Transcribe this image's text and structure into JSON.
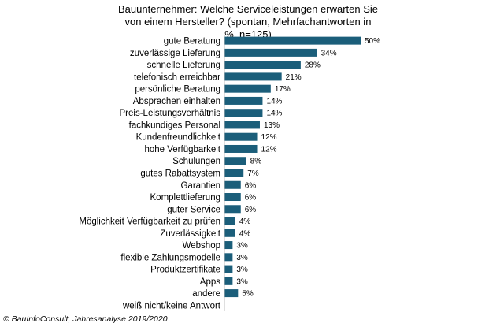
{
  "chart_data": {
    "type": "bar",
    "orientation": "horizontal",
    "title": "Bauunternehmer:  Welche Serviceleistungen erwarten Sie von einem Hersteller? (spontan, Mehrfachantworten  in %, n=125)",
    "categories": [
      "gute Beratung",
      "zuverlässige Lieferung",
      "schnelle Lieferung",
      "telefonisch erreichbar",
      "persönliche Beratung",
      "Absprachen einhalten",
      "Preis-Leistungsverhältnis",
      "fachkundiges Personal",
      "Kundenfreundlichkeit",
      "hohe Verfügbarkeit",
      "Schulungen",
      "gutes Rabattsystem",
      "Garantien",
      "Komplettlieferung",
      "guter Service",
      "Möglichkeit Verfügbarkeit zu prüfen",
      "Zuverlässigkeit",
      "Webshop",
      "flexible Zahlungsmodelle",
      "Produktzertifikate",
      "Apps",
      "andere",
      "weiß nicht/keine Antwort"
    ],
    "values": [
      50,
      34,
      28,
      21,
      17,
      14,
      14,
      13,
      12,
      12,
      8,
      7,
      6,
      6,
      6,
      4,
      4,
      3,
      3,
      3,
      3,
      5,
      null
    ],
    "value_labels": [
      "50%",
      "34%",
      "28%",
      "21%",
      "17%",
      "14%",
      "14%",
      "13%",
      "12%",
      "12%",
      "8%",
      "7%",
      "6%",
      "6%",
      "6%",
      "4%",
      "4%",
      "3%",
      "3%",
      "3%",
      "3%",
      "5%",
      ""
    ],
    "xlim": [
      0,
      50
    ],
    "bar_color": "#1b5e7a",
    "grid": false,
    "legend": "none"
  },
  "footer": {
    "copyright": "© BauInfoConsult, Jahresanalyse 2019/2020"
  }
}
